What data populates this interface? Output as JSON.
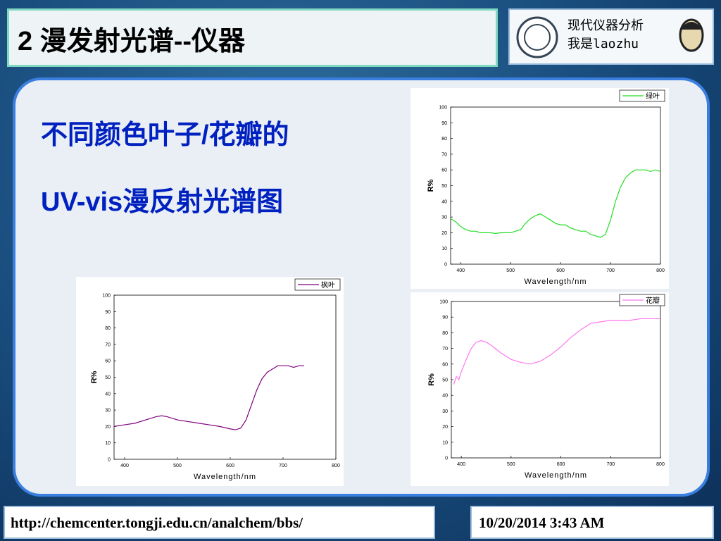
{
  "header": {
    "title": "2 漫发射光谱--仪器",
    "course": "现代仪器分析",
    "author": "我是laozhu"
  },
  "content": {
    "line1": "不同颜色叶子/花瓣的",
    "line2": "UV-vis漫反射光谱图"
  },
  "footer": {
    "url": "http://chemcenter.tongji.edu.cn/analchem/bbs/",
    "date": "10/20/2014 3:43 AM"
  },
  "chart_data": [
    {
      "type": "line",
      "xlabel": "Wavelength/nm",
      "ylabel": "R%",
      "x": [
        380,
        390,
        400,
        410,
        420,
        430,
        440,
        450,
        460,
        470,
        480,
        490,
        500,
        510,
        520,
        530,
        540,
        550,
        560,
        570,
        580,
        590,
        600,
        610,
        620,
        630,
        640,
        650,
        660,
        670,
        680,
        690,
        700,
        710,
        720,
        730,
        740,
        750,
        760,
        770,
        780,
        790,
        800
      ],
      "series": [
        {
          "name": "绿叶",
          "color": "#22dd22",
          "values": [
            29,
            27,
            24,
            22,
            21,
            21,
            20,
            20,
            20,
            19.5,
            20,
            20,
            20,
            21,
            22,
            26,
            29,
            31,
            32,
            30,
            28,
            26,
            25,
            25,
            23,
            22,
            21,
            21,
            19,
            18,
            17,
            19,
            28,
            40,
            49,
            55,
            58,
            60,
            60,
            60,
            59,
            60,
            59
          ]
        }
      ],
      "xlim": [
        380,
        800
      ],
      "ylim": [
        0,
        100
      ],
      "xticks": [
        400,
        500,
        600,
        700,
        800
      ],
      "yticks": [
        0,
        10,
        20,
        30,
        40,
        50,
        60,
        70,
        80,
        90,
        100
      ]
    },
    {
      "type": "line",
      "xlabel": "Wavelength/nm",
      "ylabel": "R%",
      "x": [
        380,
        400,
        420,
        440,
        460,
        470,
        480,
        500,
        520,
        540,
        560,
        580,
        600,
        610,
        620,
        630,
        640,
        650,
        660,
        670,
        680,
        690,
        700,
        710,
        720,
        730,
        740
      ],
      "series": [
        {
          "name": "枫叶",
          "color": "#800080",
          "values": [
            20,
            21,
            22,
            24,
            26,
            26.5,
            26,
            24,
            23,
            22,
            21,
            20,
            18.5,
            18,
            19,
            24,
            33,
            42,
            49,
            53,
            55,
            57,
            57,
            57,
            56,
            57,
            57
          ]
        }
      ],
      "xlim": [
        380,
        800
      ],
      "ylim": [
        0,
        100
      ],
      "xticks": [
        400,
        500,
        600,
        700,
        800
      ],
      "yticks": [
        0,
        10,
        20,
        30,
        40,
        50,
        60,
        70,
        80,
        90,
        100
      ]
    },
    {
      "type": "line",
      "xlabel": "Wavelength/nm",
      "ylabel": "R%",
      "x": [
        385,
        390,
        395,
        400,
        410,
        420,
        430,
        440,
        450,
        460,
        480,
        500,
        520,
        540,
        560,
        580,
        600,
        620,
        640,
        660,
        680,
        700,
        720,
        740,
        760,
        780,
        800
      ],
      "series": [
        {
          "name": "花瓣",
          "color": "#ff77ee",
          "values": [
            47,
            52,
            50,
            55,
            63,
            70,
            74,
            75,
            74,
            72,
            67,
            63,
            61,
            60,
            62,
            66,
            71,
            77,
            82,
            86,
            87,
            88,
            88,
            88,
            89,
            89,
            89
          ]
        }
      ],
      "xlim": [
        380,
        800
      ],
      "ylim": [
        0,
        100
      ],
      "xticks": [
        400,
        500,
        600,
        700,
        800
      ],
      "yticks": [
        0,
        10,
        20,
        30,
        40,
        50,
        60,
        70,
        80,
        90,
        100
      ]
    }
  ]
}
